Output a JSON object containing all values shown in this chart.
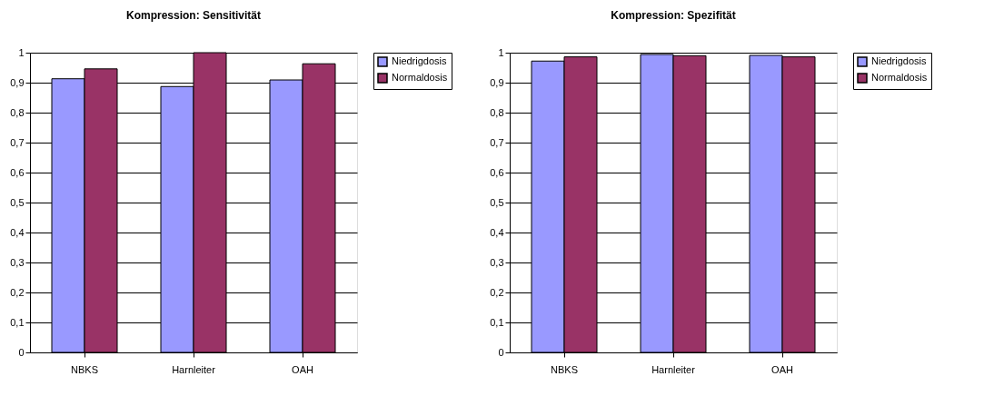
{
  "chart_data": [
    {
      "type": "bar",
      "title": "Kompression: Sensitivität",
      "categories": [
        "NBKS",
        "Harnleiter",
        "OAH"
      ],
      "series": [
        {
          "name": "Niedrigdosis",
          "color": "#9999ff",
          "values": [
            0.913,
            0.887,
            0.909
          ]
        },
        {
          "name": "Normaldosis",
          "color": "#993366",
          "values": [
            0.946,
            1.0,
            0.963
          ]
        }
      ],
      "ylim": [
        0,
        1
      ],
      "yticks": [
        0,
        {
          "value": 0.1,
          "label": "0,1"
        },
        {
          "value": 0.2,
          "label": "0,2"
        },
        {
          "value": 0.3,
          "label": "0,3"
        },
        {
          "value": 0.4,
          "label": "0,4"
        },
        {
          "value": 0.5,
          "label": "0,5"
        },
        {
          "value": 0.6,
          "label": "0,6"
        },
        {
          "value": 0.7,
          "label": "0,7"
        },
        {
          "value": 0.8,
          "label": "0,8"
        },
        {
          "value": 0.9,
          "label": "0,9"
        },
        1
      ],
      "grid": "y",
      "legend": "right"
    },
    {
      "type": "bar",
      "title": "Kompression: Spezifität",
      "categories": [
        "NBKS",
        "Harnleiter",
        "OAH"
      ],
      "series": [
        {
          "name": "Niedrigdosis",
          "color": "#9999ff",
          "values": [
            0.972,
            0.994,
            0.991
          ]
        },
        {
          "name": "Normaldosis",
          "color": "#993366",
          "values": [
            0.986,
            0.99,
            0.986
          ]
        }
      ],
      "ylim": [
        0,
        1
      ],
      "yticks": [
        0,
        {
          "value": 0.1,
          "label": "0,1"
        },
        {
          "value": 0.2,
          "label": "0,2"
        },
        {
          "value": 0.3,
          "label": "0,3"
        },
        {
          "value": 0.4,
          "label": "0,4"
        },
        {
          "value": 0.5,
          "label": "0,5"
        },
        {
          "value": 0.6,
          "label": "0,6"
        },
        {
          "value": 0.7,
          "label": "0,7"
        },
        {
          "value": 0.8,
          "label": "0,8"
        },
        {
          "value": 0.9,
          "label": "0,9"
        },
        1
      ],
      "grid": "y",
      "legend": "right"
    }
  ]
}
